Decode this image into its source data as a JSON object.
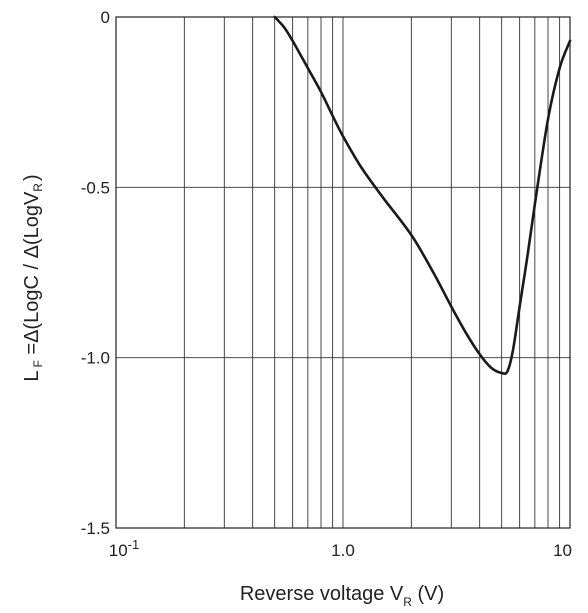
{
  "chart_data": {
    "type": "line",
    "title": "",
    "xlabel": {
      "main": "Reverse voltage V",
      "sub": "R",
      "suffix": " (V)"
    },
    "ylabel": {
      "a": "L",
      "a_sub": "F",
      "b": " =Δ(LogC / Δ(LogV",
      "b_sub": "R",
      "c": ")"
    },
    "x_scale": "log",
    "xlim": [
      0.1,
      10
    ],
    "ylim": [
      -1.5,
      0
    ],
    "x_ticks": [
      {
        "value": 0.1,
        "base": "10",
        "exp": "-1"
      },
      {
        "value": 1,
        "label": "1.0"
      },
      {
        "value": 10,
        "label": "10"
      }
    ],
    "y_ticks": [
      {
        "value": 0,
        "label": "0"
      },
      {
        "value": -0.5,
        "label": "-0.5"
      },
      {
        "value": -1.0,
        "label": "-1.0"
      },
      {
        "value": -1.5,
        "label": "-1.5"
      }
    ],
    "grid": {
      "x_minor_log": true,
      "y_major": true
    },
    "series": [
      {
        "color": "#1a1a1a",
        "x": [
          0.5,
          0.55,
          0.6,
          0.7,
          0.8,
          0.9,
          1.0,
          1.2,
          1.5,
          2.0,
          2.5,
          3.0,
          3.5,
          4.0,
          4.5,
          5.0,
          5.3,
          5.6,
          6.0,
          6.5,
          7.0,
          8.0,
          9.0,
          10.0
        ],
        "y": [
          0.0,
          -0.03,
          -0.07,
          -0.15,
          -0.22,
          -0.29,
          -0.35,
          -0.44,
          -0.53,
          -0.64,
          -0.75,
          -0.85,
          -0.93,
          -0.99,
          -1.03,
          -1.045,
          -1.04,
          -0.98,
          -0.85,
          -0.7,
          -0.55,
          -0.3,
          -0.15,
          -0.07
        ]
      }
    ]
  }
}
